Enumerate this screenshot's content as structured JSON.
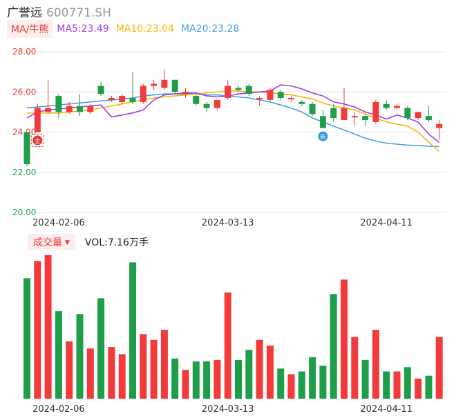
{
  "header": {
    "stock_name": "广誉远",
    "stock_code": "600771.SH"
  },
  "ma_legend": {
    "tag": "MA/牛熊",
    "items": [
      {
        "label": "MA5:23.49",
        "color": "#9c3ee8"
      },
      {
        "label": "MA10:23.04",
        "color": "#f5b800"
      },
      {
        "label": "MA20:23.28",
        "color": "#4a9ee8"
      }
    ]
  },
  "volume_legend": {
    "tag": "成交量",
    "text": "VOL:7.16万手"
  },
  "colors": {
    "up": "#f23a3a",
    "down": "#1f9e4a",
    "up_axis": "#e53935",
    "down_axis": "#1f9e4a",
    "grid": "#e6e6e6"
  },
  "chart_data": {
    "type": "candlestick",
    "y_axis": {
      "ticks": [
        28.0,
        26.0,
        24.0,
        22.0,
        20.0
      ],
      "ylim": [
        20,
        28
      ]
    },
    "x_tick_labels": [
      {
        "index": 3,
        "label": "2024-02-06"
      },
      {
        "index": 19,
        "label": "2024-03-13"
      },
      {
        "index": 34,
        "label": "2024-04-11"
      }
    ],
    "candles": [
      {
        "o": 24.0,
        "c": 22.4,
        "h": 24.0,
        "l": 22.3
      },
      {
        "o": 24.0,
        "c": 25.2,
        "h": 25.4,
        "l": 24.0
      },
      {
        "o": 25.0,
        "c": 25.2,
        "h": 26.6,
        "l": 25.0
      },
      {
        "o": 25.8,
        "c": 25.0,
        "h": 25.9,
        "l": 24.7
      },
      {
        "o": 25.0,
        "c": 25.3,
        "h": 25.5,
        "l": 24.9
      },
      {
        "o": 25.3,
        "c": 25.0,
        "h": 25.9,
        "l": 24.8
      },
      {
        "o": 25.0,
        "c": 25.3,
        "h": 25.4,
        "l": 24.9
      },
      {
        "o": 26.3,
        "c": 25.9,
        "h": 26.5,
        "l": 25.8
      },
      {
        "o": 25.6,
        "c": 25.7,
        "h": 25.8,
        "l": 25.5
      },
      {
        "o": 25.5,
        "c": 25.8,
        "h": 25.9,
        "l": 25.4
      },
      {
        "o": 25.7,
        "c": 25.5,
        "h": 27.0,
        "l": 25.4
      },
      {
        "o": 25.5,
        "c": 26.3,
        "h": 26.4,
        "l": 25.4
      },
      {
        "o": 26.3,
        "c": 26.4,
        "h": 26.6,
        "l": 26.1
      },
      {
        "o": 26.2,
        "c": 26.6,
        "h": 27.1,
        "l": 26.1
      },
      {
        "o": 26.6,
        "c": 26.0,
        "h": 26.6,
        "l": 25.9
      },
      {
        "o": 25.9,
        "c": 26.0,
        "h": 26.2,
        "l": 25.7
      },
      {
        "o": 25.8,
        "c": 25.4,
        "h": 25.9,
        "l": 25.3
      },
      {
        "o": 25.4,
        "c": 25.2,
        "h": 25.5,
        "l": 25.0
      },
      {
        "o": 25.2,
        "c": 25.6,
        "h": 25.6,
        "l": 25.1
      },
      {
        "o": 25.7,
        "c": 26.3,
        "h": 26.6,
        "l": 25.6
      },
      {
        "o": 26.2,
        "c": 26.1,
        "h": 26.3,
        "l": 26.0
      },
      {
        "o": 26.3,
        "c": 25.9,
        "h": 26.4,
        "l": 25.8
      },
      {
        "o": 25.7,
        "c": 25.7,
        "h": 25.8,
        "l": 25.3
      },
      {
        "o": 25.6,
        "c": 26.1,
        "h": 26.2,
        "l": 25.5
      },
      {
        "o": 26.0,
        "c": 25.7,
        "h": 26.1,
        "l": 25.6
      },
      {
        "o": 25.7,
        "c": 25.7,
        "h": 25.8,
        "l": 25.5
      },
      {
        "o": 25.5,
        "c": 25.4,
        "h": 25.6,
        "l": 25.3
      },
      {
        "o": 25.4,
        "c": 24.9,
        "h": 25.5,
        "l": 24.8
      },
      {
        "o": 24.8,
        "c": 24.2,
        "h": 25.1,
        "l": 24.2
      },
      {
        "o": 25.2,
        "c": 24.7,
        "h": 25.4,
        "l": 24.5
      },
      {
        "o": 24.6,
        "c": 25.2,
        "h": 26.2,
        "l": 24.6
      },
      {
        "o": 24.8,
        "c": 24.8,
        "h": 25.0,
        "l": 24.3
      },
      {
        "o": 24.8,
        "c": 24.6,
        "h": 24.9,
        "l": 24.3
      },
      {
        "o": 24.5,
        "c": 25.5,
        "h": 25.6,
        "l": 24.4
      },
      {
        "o": 25.4,
        "c": 25.2,
        "h": 25.6,
        "l": 25.1
      },
      {
        "o": 25.2,
        "c": 25.3,
        "h": 25.4,
        "l": 25.1
      },
      {
        "o": 25.2,
        "c": 24.7,
        "h": 25.3,
        "l": 24.6
      },
      {
        "o": 24.7,
        "c": 25.0,
        "h": 25.0,
        "l": 24.6
      },
      {
        "o": 24.8,
        "c": 24.6,
        "h": 25.3,
        "l": 24.5
      },
      {
        "o": 24.2,
        "c": 24.4,
        "h": 24.6,
        "l": 23.6
      }
    ],
    "ma5": [
      24.7,
      25.0,
      25.1,
      25.15,
      25.2,
      25.25,
      25.3,
      25.35,
      24.75,
      24.85,
      24.95,
      25.1,
      25.6,
      25.85,
      25.9,
      25.95,
      25.95,
      25.8,
      25.75,
      25.8,
      25.9,
      25.95,
      26.0,
      26.05,
      26.35,
      26.3,
      26.15,
      25.95,
      25.8,
      25.5,
      25.4,
      25.25,
      25.0,
      24.85,
      24.65,
      24.85,
      24.7,
      24.5,
      23.9,
      23.49
    ],
    "ma10": [
      24.95,
      24.95,
      24.95,
      24.95,
      25.0,
      25.05,
      25.1,
      25.2,
      25.3,
      25.4,
      25.5,
      25.6,
      25.7,
      25.75,
      25.8,
      25.85,
      25.9,
      25.95,
      26.0,
      26.05,
      26.05,
      26.0,
      26.0,
      25.95,
      25.9,
      25.85,
      25.75,
      25.65,
      25.45,
      25.3,
      25.2,
      25.1,
      24.9,
      24.7,
      24.5,
      24.4,
      24.3,
      24.0,
      23.5,
      23.04
    ],
    "ma20": [
      25.2,
      25.25,
      25.3,
      25.35,
      25.4,
      25.45,
      25.5,
      25.55,
      25.6,
      25.65,
      25.7,
      25.8,
      25.85,
      25.9,
      25.9,
      25.9,
      25.9,
      25.85,
      25.85,
      25.8,
      25.75,
      25.7,
      25.6,
      25.5,
      25.35,
      25.2,
      25.0,
      24.7,
      24.5,
      24.3,
      24.1,
      23.9,
      23.7,
      23.55,
      23.45,
      23.4,
      23.35,
      23.33,
      23.3,
      23.28
    ],
    "volume": [
      0.84,
      0.96,
      1.0,
      0.61,
      0.4,
      0.59,
      0.35,
      0.7,
      0.36,
      0.31,
      0.95,
      0.45,
      0.41,
      0.48,
      0.28,
      0.2,
      0.26,
      0.26,
      0.27,
      0.74,
      0.27,
      0.34,
      0.41,
      0.37,
      0.21,
      0.17,
      0.19,
      0.29,
      0.23,
      0.73,
      0.83,
      0.43,
      0.27,
      0.48,
      0.19,
      0.19,
      0.22,
      0.14,
      0.16,
      0.43
    ],
    "markers": [
      {
        "index": 1,
        "label": "主",
        "color": "#e53935"
      },
      {
        "index": 28,
        "label": "新",
        "color": "#2e9ae8"
      }
    ]
  }
}
